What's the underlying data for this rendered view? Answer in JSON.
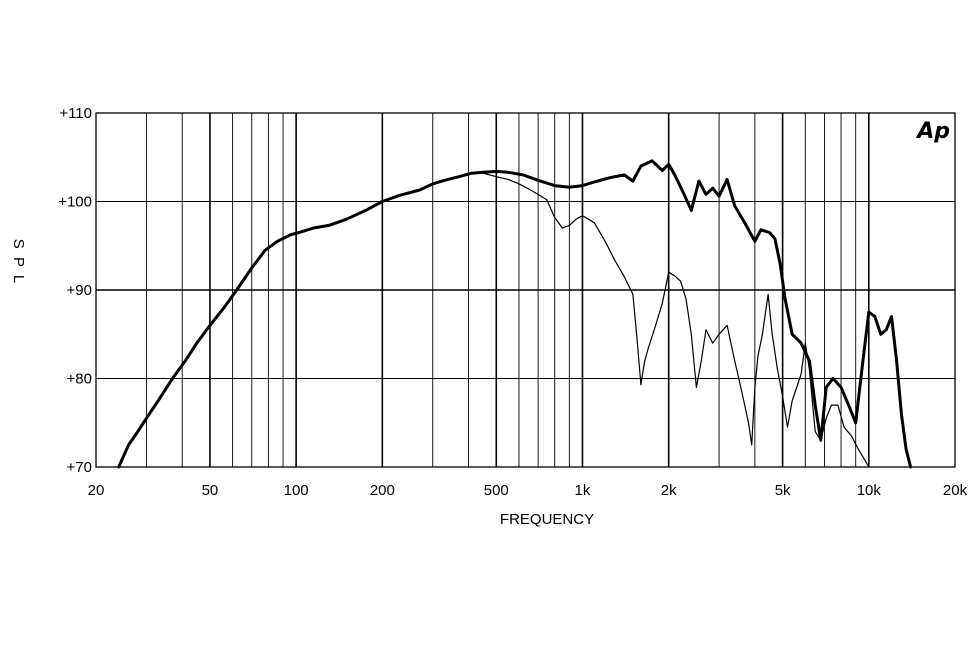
{
  "chart_data": {
    "type": "line",
    "title": "",
    "xlabel": "FREQUENCY",
    "ylabel": "S P L",
    "x_scale": "log",
    "xlim": [
      20,
      20000
    ],
    "ylim": [
      70,
      110
    ],
    "grid": true,
    "x_ticks": [
      {
        "value": 20,
        "label": "20"
      },
      {
        "value": 50,
        "label": "50"
      },
      {
        "value": 100,
        "label": "100"
      },
      {
        "value": 200,
        "label": "200"
      },
      {
        "value": 500,
        "label": "500"
      },
      {
        "value": 1000,
        "label": "1k"
      },
      {
        "value": 2000,
        "label": "2k"
      },
      {
        "value": 5000,
        "label": "5k"
      },
      {
        "value": 10000,
        "label": "10k"
      },
      {
        "value": 20000,
        "label": "20k"
      }
    ],
    "y_ticks": [
      {
        "value": 70,
        "label": "+70"
      },
      {
        "value": 80,
        "label": "+80"
      },
      {
        "value": 90,
        "label": "+90"
      },
      {
        "value": 100,
        "label": "+100"
      },
      {
        "value": 110,
        "label": "+110"
      }
    ],
    "series": [
      {
        "weight": "thick",
        "points": [
          [
            24,
            70
          ],
          [
            26,
            72.5
          ],
          [
            28,
            74
          ],
          [
            30,
            75.5
          ],
          [
            33,
            77.5
          ],
          [
            37,
            80
          ],
          [
            41,
            82
          ],
          [
            45,
            84
          ],
          [
            50,
            86
          ],
          [
            56,
            88
          ],
          [
            62,
            90
          ],
          [
            70,
            92.5
          ],
          [
            78,
            94.5
          ],
          [
            86,
            95.5
          ],
          [
            95,
            96.2
          ],
          [
            105,
            96.6
          ],
          [
            115,
            97
          ],
          [
            130,
            97.3
          ],
          [
            150,
            98
          ],
          [
            175,
            99
          ],
          [
            200,
            100
          ],
          [
            230,
            100.7
          ],
          [
            270,
            101.3
          ],
          [
            300,
            102
          ],
          [
            330,
            102.4
          ],
          [
            370,
            102.8
          ],
          [
            410,
            103.2
          ],
          [
            450,
            103.3
          ],
          [
            500,
            103.4
          ],
          [
            550,
            103.3
          ],
          [
            620,
            103
          ],
          [
            700,
            102.4
          ],
          [
            800,
            101.8
          ],
          [
            900,
            101.6
          ],
          [
            1000,
            101.8
          ],
          [
            1100,
            102.2
          ],
          [
            1250,
            102.7
          ],
          [
            1400,
            103
          ],
          [
            1500,
            102.3
          ],
          [
            1600,
            104
          ],
          [
            1750,
            104.6
          ],
          [
            1900,
            103.5
          ],
          [
            2000,
            104.2
          ],
          [
            2100,
            103
          ],
          [
            2250,
            101
          ],
          [
            2400,
            99
          ],
          [
            2550,
            102.3
          ],
          [
            2700,
            100.8
          ],
          [
            2850,
            101.5
          ],
          [
            3000,
            100.6
          ],
          [
            3200,
            102.5
          ],
          [
            3400,
            99.5
          ],
          [
            3700,
            97.5
          ],
          [
            4000,
            95.5
          ],
          [
            4200,
            96.8
          ],
          [
            4500,
            96.5
          ],
          [
            4700,
            95.8
          ],
          [
            4900,
            93
          ],
          [
            5100,
            89
          ],
          [
            5400,
            85
          ],
          [
            5800,
            84
          ],
          [
            6200,
            82
          ],
          [
            6500,
            77
          ],
          [
            6800,
            73
          ],
          [
            7100,
            79
          ],
          [
            7500,
            80
          ],
          [
            8000,
            79
          ],
          [
            8500,
            77
          ],
          [
            9000,
            75
          ],
          [
            9500,
            81.5
          ],
          [
            10000,
            87.5
          ],
          [
            10500,
            87
          ],
          [
            11000,
            85
          ],
          [
            11500,
            85.5
          ],
          [
            12000,
            87
          ],
          [
            12500,
            82
          ],
          [
            13000,
            76
          ],
          [
            13500,
            72
          ],
          [
            14000,
            70
          ]
        ]
      },
      {
        "weight": "thin",
        "points": [
          [
            450,
            103.2
          ],
          [
            500,
            102.8
          ],
          [
            550,
            102.5
          ],
          [
            600,
            102
          ],
          [
            650,
            101.4
          ],
          [
            700,
            100.8
          ],
          [
            750,
            100.2
          ],
          [
            800,
            98.2
          ],
          [
            850,
            97
          ],
          [
            900,
            97.3
          ],
          [
            950,
            98
          ],
          [
            1000,
            98.4
          ],
          [
            1100,
            97.6
          ],
          [
            1200,
            95.5
          ],
          [
            1300,
            93.3
          ],
          [
            1400,
            91.5
          ],
          [
            1500,
            89.5
          ],
          [
            1550,
            84.5
          ],
          [
            1600,
            79.3
          ],
          [
            1650,
            82
          ],
          [
            1700,
            83.5
          ],
          [
            1800,
            86
          ],
          [
            1900,
            88.5
          ],
          [
            2000,
            92
          ],
          [
            2100,
            91.6
          ],
          [
            2200,
            91
          ],
          [
            2300,
            89
          ],
          [
            2400,
            85
          ],
          [
            2500,
            79
          ],
          [
            2600,
            82
          ],
          [
            2700,
            85.5
          ],
          [
            2850,
            84
          ],
          [
            3000,
            85
          ],
          [
            3200,
            86
          ],
          [
            3400,
            82
          ],
          [
            3600,
            78.5
          ],
          [
            3800,
            75
          ],
          [
            3900,
            72.5
          ],
          [
            4000,
            79
          ],
          [
            4100,
            82.5
          ],
          [
            4250,
            85
          ],
          [
            4450,
            89.5
          ],
          [
            4600,
            85
          ],
          [
            4800,
            81
          ],
          [
            5000,
            78
          ],
          [
            5200,
            74.5
          ],
          [
            5400,
            77.5
          ],
          [
            5600,
            79
          ],
          [
            5800,
            80.5
          ],
          [
            6000,
            84
          ],
          [
            6200,
            81
          ],
          [
            6500,
            74
          ],
          [
            6800,
            73
          ],
          [
            7100,
            75.5
          ],
          [
            7400,
            77
          ],
          [
            7800,
            77
          ],
          [
            8200,
            74.5
          ],
          [
            8700,
            73.5
          ],
          [
            9200,
            72
          ],
          [
            9600,
            71
          ],
          [
            10000,
            70
          ]
        ]
      }
    ]
  },
  "logo": {
    "text": "Ap"
  }
}
